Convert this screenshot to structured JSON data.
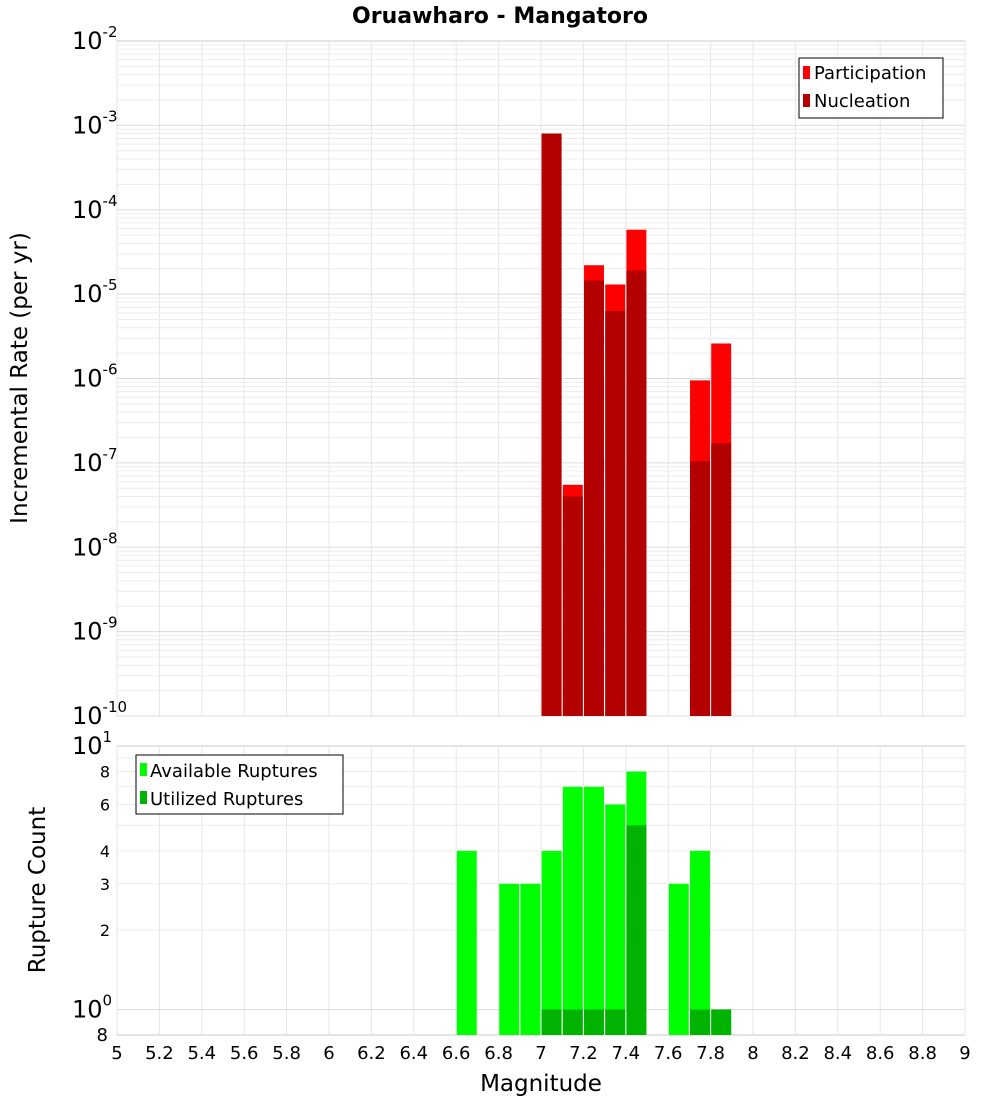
{
  "chart_data": [
    {
      "type": "bar",
      "title": "Oruawharo - Mangatoro",
      "xlabel": "Magnitude",
      "ylabel": "Incremental Rate (per yr)",
      "yscale": "log",
      "xlim": [
        5,
        9
      ],
      "ylim": [
        1e-10,
        0.01
      ],
      "y_tick_labels": [
        {
          "base": "10",
          "exp": "-10"
        },
        {
          "base": "10",
          "exp": "-9"
        },
        {
          "base": "10",
          "exp": "-8"
        },
        {
          "base": "10",
          "exp": "-7"
        },
        {
          "base": "10",
          "exp": "-6"
        },
        {
          "base": "10",
          "exp": "-5"
        },
        {
          "base": "10",
          "exp": "-4"
        },
        {
          "base": "10",
          "exp": "-3"
        },
        {
          "base": "10",
          "exp": "-2"
        }
      ],
      "legend_position": "top-right",
      "series": [
        {
          "name": "Participation",
          "color": "#ff0000",
          "x": [
            7.05,
            7.15,
            7.25,
            7.35,
            7.45,
            7.75,
            7.85
          ],
          "values": [
            0.0008,
            5.5e-08,
            2.2e-05,
            1.3e-05,
            5.8e-05,
            9.5e-07,
            2.6e-06
          ]
        },
        {
          "name": "Nucleation",
          "color": "#b30000",
          "x": [
            7.05,
            7.15,
            7.25,
            7.35,
            7.45,
            7.75,
            7.85
          ],
          "values": [
            0.0008,
            4e-08,
            1.45e-05,
            6.3e-06,
            1.9e-05,
            1.05e-07,
            1.7e-07
          ]
        }
      ]
    },
    {
      "type": "bar",
      "title": "",
      "xlabel": "Magnitude",
      "ylabel": "Rupture Count",
      "yscale": "log",
      "xlim": [
        5,
        9
      ],
      "ylim": [
        0.8,
        10
      ],
      "x_tick_labels": [
        "5",
        "5.2",
        "5.4",
        "5.6",
        "5.8",
        "6",
        "6.2",
        "6.4",
        "6.6",
        "6.8",
        "7",
        "7.2",
        "7.4",
        "7.6",
        "7.8",
        "8",
        "8.2",
        "8.4",
        "8.6",
        "8.8",
        "9"
      ],
      "y_major_labels": [
        {
          "base": "10",
          "exp": "0"
        },
        {
          "base": "10",
          "exp": "1"
        }
      ],
      "y_minor_labels": [
        "8",
        "2",
        "3",
        "4",
        "6",
        "8"
      ],
      "legend_position": "top-left",
      "series": [
        {
          "name": "Available Ruptures",
          "color": "#00ff00",
          "x": [
            6.65,
            6.85,
            6.95,
            7.05,
            7.15,
            7.25,
            7.35,
            7.45,
            7.65,
            7.75,
            7.85
          ],
          "values": [
            4,
            3,
            3,
            4,
            7,
            7,
            6,
            8,
            3,
            4,
            1
          ]
        },
        {
          "name": "Utilized Ruptures",
          "color": "#00b300",
          "x": [
            7.05,
            7.15,
            7.25,
            7.35,
            7.45,
            7.75,
            7.85
          ],
          "values": [
            1,
            1,
            1,
            1,
            5,
            1,
            1
          ]
        }
      ]
    }
  ]
}
